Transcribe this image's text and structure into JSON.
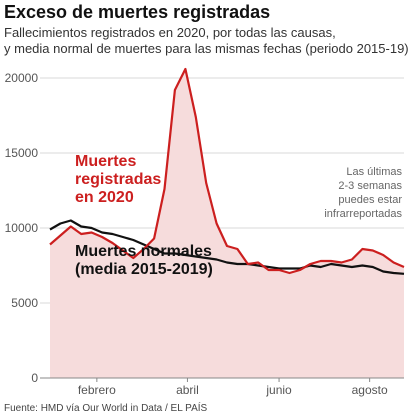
{
  "header": {
    "title": "Exceso de muertes registradas",
    "subtitle_line1": "Fallecimientos registrados en 2020, por todas las causas,",
    "subtitle_line2": "y media normal de muertes para las mismas fechas (periodo 2015-19)"
  },
  "source": "Fuente: HMD vía Our World in Data / EL PAÍS",
  "colors": {
    "registered": "#cc1f1f",
    "normal": "#111111",
    "excess_fill": "#f6dcdc",
    "grid": "#d8d8d8"
  },
  "chart_data": {
    "type": "line",
    "title": "Exceso de muertes registradas",
    "xlabel": "",
    "ylabel": "",
    "ylim": [
      0,
      21000
    ],
    "yticks": [
      "0",
      "5000",
      "10000",
      "15000",
      "20000"
    ],
    "ytick_values": [
      0,
      5000,
      10000,
      15000,
      20000
    ],
    "xticks": [
      "febrero",
      "abril",
      "junio",
      "agosto"
    ],
    "xtick_weeks": [
      5.5,
      14.2,
      23.0,
      31.7
    ],
    "x": [
      1,
      2,
      3,
      4,
      5,
      6,
      7,
      8,
      9,
      10,
      11,
      12,
      13,
      14,
      15,
      16,
      17,
      18,
      19,
      20,
      21,
      22,
      23,
      24,
      25,
      26,
      27,
      28,
      29,
      30,
      31,
      32,
      33,
      34,
      35
    ],
    "grid": true,
    "series": [
      {
        "name": "Muertes registradas en 2020",
        "label_lines": [
          "Muertes",
          "registradas",
          "en 2020"
        ],
        "values": [
          8900,
          9500,
          10100,
          9600,
          9700,
          9400,
          9000,
          8500,
          8000,
          8600,
          9300,
          12600,
          19200,
          20600,
          17400,
          13000,
          10300,
          8800,
          8600,
          7600,
          7700,
          7200,
          7200,
          7000,
          7200,
          7600,
          7800,
          7800,
          7700,
          7900,
          8600,
          8500,
          8200,
          7700,
          7400
        ]
      },
      {
        "name": "Muertes normales (media 2015-2019)",
        "label_lines": [
          "Muertes normales",
          "(media 2015-2019)"
        ],
        "values": [
          9900,
          10300,
          10500,
          10100,
          10000,
          9700,
          9600,
          9400,
          9200,
          8900,
          8600,
          8300,
          8300,
          8200,
          8100,
          8000,
          7900,
          7700,
          7600,
          7600,
          7500,
          7400,
          7300,
          7300,
          7300,
          7500,
          7400,
          7600,
          7500,
          7400,
          7500,
          7400,
          7100,
          7000,
          6950
        ]
      }
    ],
    "annotation_lines": [
      "Las últimas",
      "2-3 semanas",
      "puedes estar",
      "infrarreportadas"
    ]
  }
}
